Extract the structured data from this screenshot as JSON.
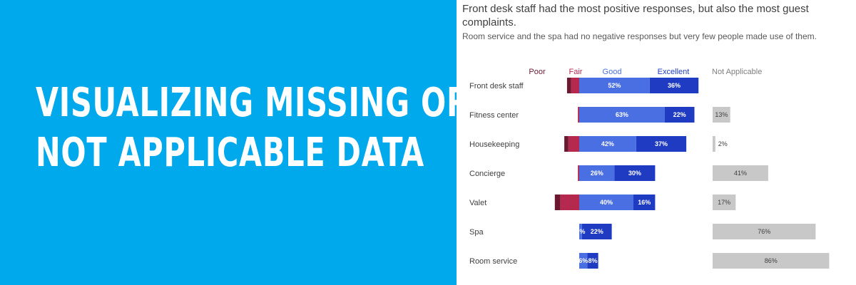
{
  "banner": {
    "line1": "VISUALIZING MISSING OR",
    "line2": "NOT APPLICABLE DATA",
    "background": "#00a9ec"
  },
  "chart_data": {
    "type": "bar",
    "subtype": "diverging-stacked-horizontal",
    "title": "Front desk staff had the most positive responses, but also the most guest complaints.",
    "subtitle": "Room service and the spa had no negative responses but very few people made use of them.",
    "legend": {
      "poor": "Poor",
      "fair": "Fair",
      "good": "Good",
      "excellent": "Excellent",
      "not_applicable": "Not Applicable"
    },
    "colors": {
      "poor": "#6b1830",
      "fair": "#b5294e",
      "good": "#4a6fe3",
      "excellent": "#1f3bc2",
      "not_applicable": "#c8c8c8"
    },
    "categories": [
      "Front desk staff",
      "Fitness center",
      "Housekeeping",
      "Concierge",
      "Valet",
      "Spa",
      "Room service"
    ],
    "series": [
      {
        "name": "Poor",
        "values": [
          3,
          0,
          3,
          0,
          4,
          0,
          0
        ]
      },
      {
        "name": "Fair",
        "values": [
          6,
          1,
          8,
          1,
          14,
          0,
          0
        ]
      },
      {
        "name": "Good",
        "values": [
          52,
          63,
          42,
          26,
          40,
          2,
          6
        ]
      },
      {
        "name": "Excellent",
        "values": [
          36,
          22,
          37,
          30,
          16,
          22,
          8
        ]
      },
      {
        "name": "Not Applicable",
        "values": [
          0,
          13,
          2,
          41,
          17,
          76,
          86
        ]
      }
    ],
    "data_labels": {
      "Good": [
        "52%",
        "63%",
        "42%",
        "26%",
        "40%",
        "2%",
        "6%"
      ],
      "Excellent": [
        "36%",
        "22%",
        "37%",
        "30%",
        "16%",
        "22%",
        "8%"
      ],
      "Not Applicable": [
        "",
        "13%",
        "2%",
        "41%",
        "17%",
        "76%",
        "86%"
      ]
    },
    "grid": false
  }
}
